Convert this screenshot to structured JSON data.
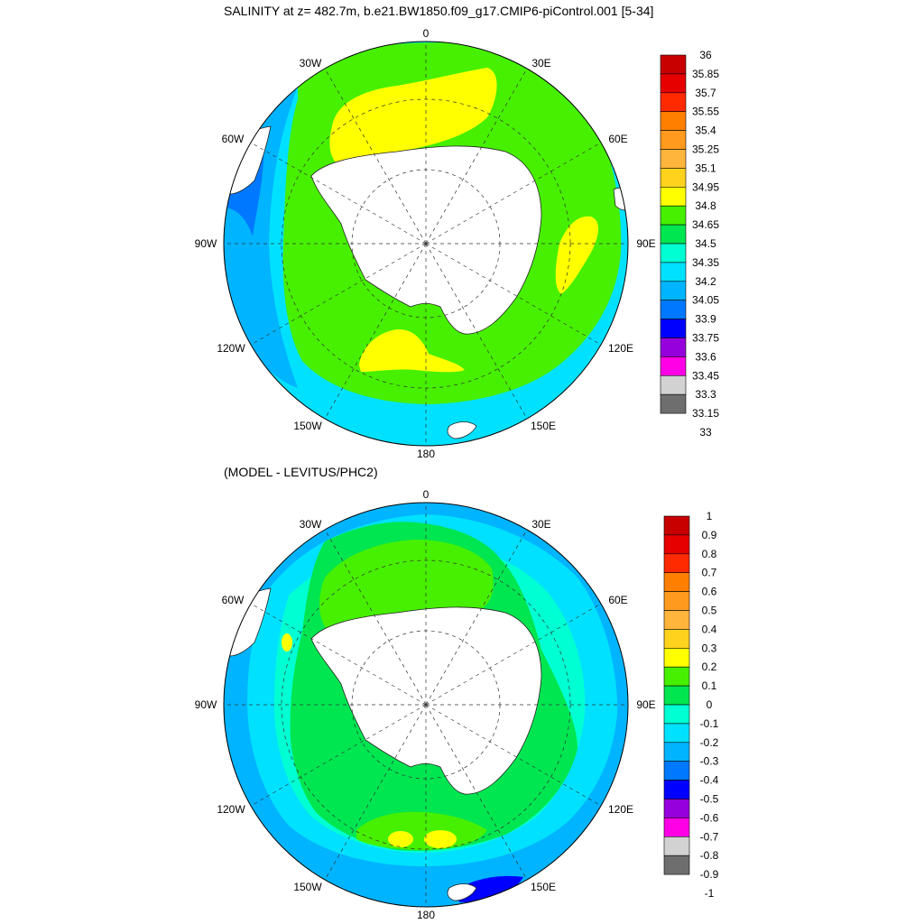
{
  "titles": {
    "top": "SALINITY at z= 482.7m, b.e21.BW1850.f09_g17.CMIP6-piControl.001 [5-34]",
    "bottom": "(MODEL - LEVITUS/PHC2)"
  },
  "longitude_labels": [
    "0",
    "30E",
    "60E",
    "90E",
    "120E",
    "150E",
    "180",
    "150W",
    "120W",
    "90W",
    "60W",
    "30W"
  ],
  "colors": {
    "land": "#ffffff",
    "coast": "#222222",
    "grid": "#333333"
  },
  "top_colorbar": {
    "labels": [
      "36",
      "35.85",
      "35.7",
      "35.55",
      "35.4",
      "35.25",
      "35.1",
      "34.95",
      "34.8",
      "34.65",
      "34.5",
      "34.35",
      "34.2",
      "34.05",
      "33.9",
      "33.75",
      "33.6",
      "33.45",
      "33.3",
      "33.15",
      "33"
    ],
    "colors": [
      "#c80000",
      "#e60000",
      "#ff2a00",
      "#ff8000",
      "#ff9a1e",
      "#ffb43c",
      "#ffd21e",
      "#ffff00",
      "#46f000",
      "#00e650",
      "#00ffd2",
      "#00e1ff",
      "#00b4ff",
      "#0078ff",
      "#0000ff",
      "#9600dc",
      "#ff00e6",
      "#d2d2d2",
      "#6e6e6e"
    ]
  },
  "bottom_colorbar": {
    "labels": [
      "1",
      "0.9",
      "0.8",
      "0.7",
      "0.6",
      "0.5",
      "0.4",
      "0.3",
      "0.2",
      "0.1",
      "0",
      "-0.1",
      "-0.2",
      "-0.3",
      "-0.4",
      "-0.5",
      "-0.6",
      "-0.7",
      "-0.8",
      "-0.9",
      "-1"
    ],
    "colors": [
      "#c80000",
      "#e60000",
      "#ff2a00",
      "#ff8000",
      "#ff9a1e",
      "#ffb43c",
      "#ffd21e",
      "#ffff00",
      "#46f000",
      "#00e650",
      "#00ffd2",
      "#00e1ff",
      "#00b4ff",
      "#0078ff",
      "#0000ff",
      "#9600dc",
      "#ff00e6",
      "#d2d2d2",
      "#6e6e6e"
    ]
  }
}
